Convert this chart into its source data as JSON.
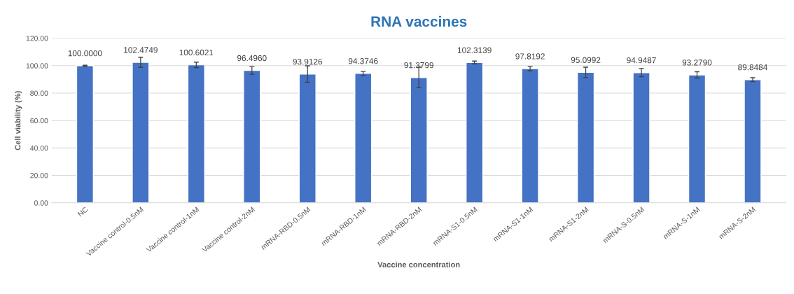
{
  "chart_data": {
    "type": "bar",
    "title": "RNA vaccines",
    "xlabel": "Vaccine concentration",
    "ylabel": "Cell viability (%)",
    "categories": [
      "NC",
      "Vaccine control-0.5nM",
      "Vaccine control-1nM",
      "Vaccine control-2nM",
      "mRNA-RBD-0.5nM",
      "mRNA-RBD-1nM",
      "mRNA-RBD-2nM",
      "mRNA-S1-0.5nM",
      "mRNA-S1-1nM",
      "mRNA-S1-2nM",
      "mRNA-S-0.5nM",
      "mRNA-S-1nM",
      "mRNA-S-2nM"
    ],
    "values": [
      100.0,
      102.4749,
      100.6021,
      96.496,
      93.9126,
      94.3746,
      91.3799,
      102.3139,
      97.8192,
      95.0992,
      94.9487,
      93.279,
      89.8484
    ],
    "value_labels": [
      "100.0000",
      "102.4749",
      "100.6021",
      "96.4960",
      "93.9126",
      "94.3746",
      "91.3799",
      "102.3139",
      "97.8192",
      "95.0992",
      "94.9487",
      "93.2790",
      "89.8484"
    ],
    "errors": [
      0.3,
      3.7,
      2.0,
      2.8,
      6.0,
      1.4,
      7.5,
      1.0,
      1.5,
      3.8,
      3.0,
      2.3,
      1.4
    ],
    "color": "#4472c4",
    "ylim": [
      0,
      120
    ],
    "yticks": [
      {
        "value": 0,
        "label": "0.00"
      },
      {
        "value": 20,
        "label": "20.00"
      },
      {
        "value": 40,
        "label": "40.00"
      },
      {
        "value": 60,
        "label": "60.00"
      },
      {
        "value": 80,
        "label": "80.00"
      },
      {
        "value": 100,
        "label": "100.00"
      },
      {
        "value": 120,
        "label": "120.00"
      }
    ],
    "grid": "y",
    "legend": false
  }
}
